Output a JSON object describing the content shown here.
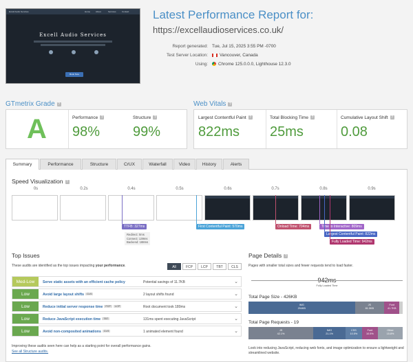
{
  "report": {
    "title": "Latest Performance Report for:",
    "url": "https://excellaudioservices.co.uk/",
    "meta": [
      {
        "key": "Report generated:",
        "value": "Tue, Jul 15, 2025 3:55 PM -0700"
      },
      {
        "key": "Test Server Location:",
        "value": "Vancouver, Canada"
      },
      {
        "key": "Using:",
        "value": "Chrome 125.0.0.0, Lighthouse 12.3.0"
      }
    ]
  },
  "thumbnail": {
    "site_name": "Excell Audio Services",
    "nav": [
      "Excell Audio Services",
      "Home",
      "About",
      "Services",
      "Contact"
    ],
    "cta": "Book Now"
  },
  "grade": {
    "heading": "GTmetrix Grade",
    "letter": "A",
    "performance_label": "Performance",
    "performance_value": "98%",
    "structure_label": "Structure",
    "structure_value": "99%"
  },
  "vitals": {
    "heading": "Web Vitals",
    "items": [
      {
        "label": "Largest Contentful Paint",
        "value": "822ms"
      },
      {
        "label": "Total Blocking Time",
        "value": "25ms"
      },
      {
        "label": "Cumulative Layout Shift",
        "value": "0.08"
      }
    ]
  },
  "tabs": [
    "Summary",
    "Performance",
    "Structure",
    "CrUX",
    "Waterfall",
    "Video",
    "History",
    "Alerts"
  ],
  "speed": {
    "title": "Speed Visualization",
    "ticks": [
      "0s",
      "0.2s",
      "0.4s",
      "0.5s",
      "0.6s",
      "0.7s",
      "0.8s",
      "0.9s"
    ],
    "markers": {
      "ttfb": "TTFB: 327ms",
      "ttfb_detail": [
        "Redirect: 0ms",
        "Connect: 139ms",
        "Backend: 188ms"
      ],
      "fcp": "First Contentful Paint: 570ms",
      "onload": "Onload Time: 704ms",
      "tti": "Time to Interactive: 809ms",
      "lcp": "Largest Contentful Paint: 822ms",
      "flt": "Fully Loaded Time: 942ms"
    }
  },
  "issues": {
    "title": "Top Issues",
    "desc_prefix": "These audits are identified as the top issues impacting ",
    "desc_bold": "your performance",
    "filters": [
      "All",
      "FCP",
      "LCP",
      "TBT",
      "CLS"
    ],
    "rows": [
      {
        "severity": "Med-Low",
        "name": "Serve static assets with an efficient cache policy",
        "tags": [],
        "impact": "Potential savings of 11.7KB"
      },
      {
        "severity": "Low",
        "name": "Avoid large layout shifts",
        "tags": [
          "CLS"
        ],
        "impact": "2 layout shifts found"
      },
      {
        "severity": "Low",
        "name": "Reduce initial server response time",
        "tags": [
          "FCP",
          "LCP"
        ],
        "impact": "Root document took 180ms"
      },
      {
        "severity": "Low",
        "name": "Reduce JavaScript execution time",
        "tags": [
          "TBT"
        ],
        "impact": "131ms spent executing JavaScript"
      },
      {
        "severity": "Low",
        "name": "Avoid non-composited animations",
        "tags": [
          "CLS"
        ],
        "impact": "1 animated element found"
      }
    ],
    "footer": "Improving these audits seen here can help as a starting point for overall performance gains.",
    "link": "See all Structure audits."
  },
  "details": {
    "title": "Page Details",
    "desc": "Pages with smaller total sizes and fewer requests tend to load faster.",
    "load_time": "942ms",
    "load_label": "Fully Loaded Time",
    "size_heading": "Total Page Size - 426KB",
    "size_segments": [
      {
        "name": "IMG",
        "value": "294KB",
        "pct": 69,
        "color": "#4a6a94"
      },
      {
        "name": "JS",
        "value": "81.0KB",
        "pct": 19,
        "color": "#7a8290"
      },
      {
        "name": "Font",
        "value": "41.7KB",
        "pct": 10,
        "color": "#a0518a"
      },
      {
        "name": "",
        "value": "",
        "pct": 2,
        "color": "#cfcfcf"
      }
    ],
    "req_heading": "Total Page Requests - 19",
    "req_segments": [
      {
        "name": "JS",
        "value": "42.1%",
        "pct": 42,
        "color": "#7a8290"
      },
      {
        "name": "IMG",
        "value": "21.1%",
        "pct": 21,
        "color": "#4a6a94"
      },
      {
        "name": "CSS",
        "value": "10.5%",
        "pct": 10.5,
        "color": "#5f7fa6"
      },
      {
        "name": "Font",
        "value": "10.5%",
        "pct": 10.5,
        "color": "#a0518a"
      },
      {
        "name": "Other",
        "value": "15.8%",
        "pct": 16,
        "color": "#9aa3ad"
      }
    ],
    "footer": "Look into reducing JavaScript, reducing web fonts, and image optimization to ensure a lightweight and streamlined website."
  }
}
